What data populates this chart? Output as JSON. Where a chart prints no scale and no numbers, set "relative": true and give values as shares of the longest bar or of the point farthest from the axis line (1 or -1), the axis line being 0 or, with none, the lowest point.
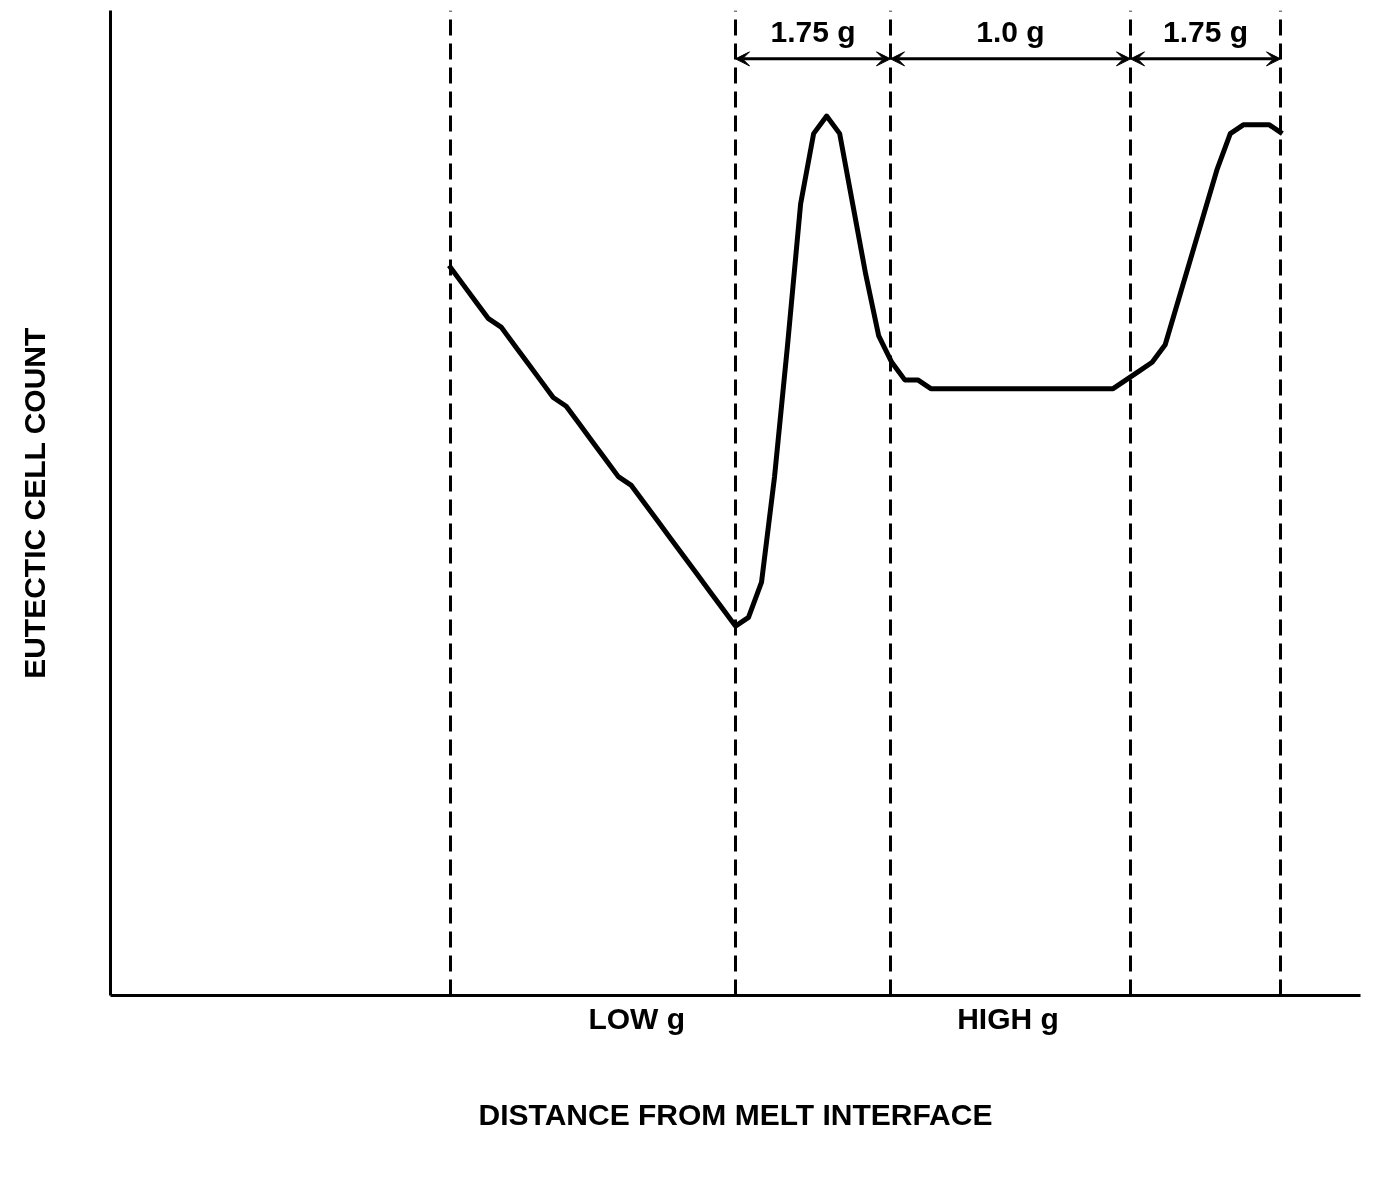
{
  "chart_data": {
    "type": "line",
    "relative": true,
    "xlabel": "DISTANCE FROM MELT INTERFACE",
    "ylabel": "EUTECTIC CELL COUNT",
    "line_style": "solid",
    "categories": [
      null,
      null,
      null,
      null,
      null,
      null,
      null,
      null,
      null,
      null,
      null,
      null,
      null,
      null,
      null,
      null,
      null,
      null,
      null,
      null,
      null,
      null,
      null,
      null,
      null,
      null,
      null,
      null,
      null,
      null,
      null,
      null,
      null,
      null,
      null,
      null,
      null,
      null,
      null,
      null,
      null,
      null,
      null,
      null,
      null,
      null,
      null,
      null,
      null,
      null,
      null,
      null,
      null,
      null,
      null,
      null,
      null,
      null,
      null,
      null,
      null,
      null,
      null,
      null,
      null,
      null,
      null,
      null,
      null,
      null,
      null,
      null,
      null,
      null,
      null,
      null,
      null,
      null,
      null,
      null,
      null,
      null,
      null,
      null,
      null,
      null,
      null,
      null,
      null,
      null,
      null,
      null,
      null,
      null,
      null,
      null,
      null
    ],
    "series": [
      {
        "color": "#000000",
        "values": [
          null,
          null,
          null,
          null,
          null,
          null,
          null,
          null,
          null,
          null,
          null,
          null,
          null,
          null,
          null,
          null,
          null,
          null,
          null,
          null,
          null,
          null,
          null,
          null,
          null,
          null,
          0.83,
          0.81,
          0.79,
          0.77,
          0.76,
          0.74,
          0.72,
          0.7,
          0.68,
          0.67,
          0.65,
          0.63,
          0.61,
          0.59,
          0.58,
          0.56,
          0.54,
          0.52,
          0.5,
          0.48,
          0.46,
          0.44,
          0.42,
          0.43,
          0.47,
          0.59,
          0.74,
          0.9,
          0.98,
          1.0,
          0.98,
          0.9,
          0.82,
          0.75,
          0.72,
          0.7,
          0.7,
          0.69,
          0.69,
          0.69,
          0.69,
          0.69,
          0.69,
          0.69,
          0.69,
          0.69,
          0.69,
          0.69,
          0.69,
          0.69,
          0.69,
          0.69,
          0.7,
          0.71,
          0.72,
          0.74,
          0.79,
          0.84,
          0.89,
          0.94,
          0.98,
          0.99,
          0.99,
          0.99,
          0.98,
          null,
          null,
          null,
          null,
          null,
          null
        ]
      }
    ],
    "grid": "x",
    "annotations": [
      "1.75 g",
      "1.0 g",
      "1.75 g",
      "LOW g",
      "HIGH g"
    ]
  }
}
